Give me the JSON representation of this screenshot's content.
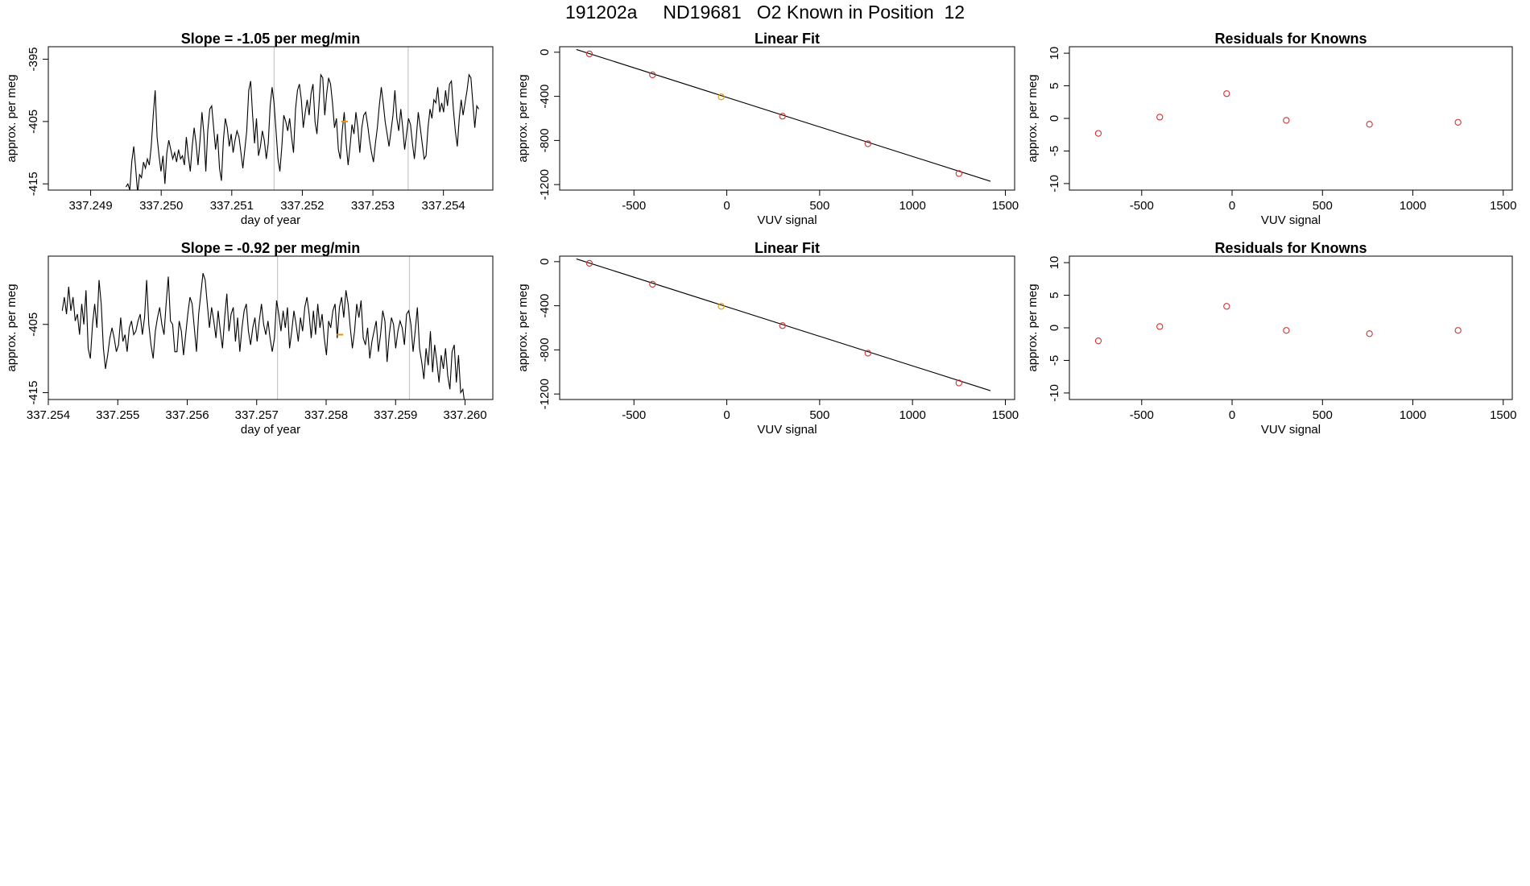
{
  "page": {
    "title": "191202a     ND19681   O2 Known in Position  12",
    "colors": {
      "line": "#000000",
      "knowns": "#cd3333",
      "highlight": "#e69500",
      "vline": "#c8c8c8"
    }
  },
  "chart_data": [
    {
      "id": "ts1",
      "type": "line",
      "title": "Slope =  -1.05  per meg/min",
      "xlabel": "day of year",
      "ylabel": "approx. per meg",
      "xlim": [
        337.2484,
        337.2547
      ],
      "ylim": [
        -416,
        -393
      ],
      "xticks": [
        "337.249",
        "337.250",
        "337.251",
        "337.252",
        "337.253",
        "337.254"
      ],
      "xtick_values": [
        337.249,
        337.25,
        337.251,
        337.252,
        337.253,
        337.254
      ],
      "yticks": [
        "-395",
        "-405",
        "-415"
      ],
      "ytick_values": [
        -395,
        -405,
        -415
      ],
      "x_start": 337.2495,
      "x_end": 337.2545,
      "values": [
        -415.5,
        -415.0,
        -416.0,
        -411.5,
        -409.0,
        -412.5,
        -416.5,
        -413.5,
        -414.0,
        -411.5,
        -412.5,
        -411.0,
        -412.0,
        -409.0,
        -404.0,
        -400.0,
        -407.5,
        -410.5,
        -413.0,
        -410.5,
        -415.0,
        -410.0,
        -408.0,
        -409.5,
        -411.0,
        -410.0,
        -411.5,
        -409.5,
        -411.0,
        -410.5,
        -412.0,
        -407.5,
        -410.5,
        -413.0,
        -409.0,
        -406.0,
        -408.5,
        -412.0,
        -408.0,
        -403.5,
        -407.0,
        -413.0,
        -406.5,
        -403.0,
        -402.5,
        -406.0,
        -409.5,
        -407.0,
        -412.5,
        -414.5,
        -408.0,
        -404.5,
        -406.0,
        -409.0,
        -407.0,
        -410.0,
        -408.0,
        -406.5,
        -407.5,
        -410.0,
        -412.5,
        -409.5,
        -406.5,
        -400.0,
        -398.5,
        -404.0,
        -408.5,
        -404.5,
        -410.5,
        -409.0,
        -406.5,
        -408.0,
        -411.0,
        -408.5,
        -402.5,
        -399.5,
        -402.0,
        -406.5,
        -411.0,
        -413.0,
        -409.0,
        -404.0,
        -405.0,
        -406.5,
        -404.5,
        -407.5,
        -410.0,
        -403.0,
        -400.0,
        -399.0,
        -401.5,
        -406.0,
        -403.5,
        -401.5,
        -404.0,
        -400.5,
        -399.0,
        -405.0,
        -407.0,
        -402.5,
        -397.5,
        -398.0,
        -404.0,
        -400.5,
        -398.0,
        -399.0,
        -402.0,
        -406.0,
        -404.5,
        -409.5,
        -411.0,
        -406.5,
        -403.5,
        -408.5,
        -412.0,
        -409.0,
        -405.5,
        -407.0,
        -403.5,
        -406.0,
        -410.0,
        -406.0,
        -404.0,
        -403.5,
        -405.5,
        -408.0,
        -410.0,
        -411.5,
        -408.5,
        -406.0,
        -402.5,
        -399.5,
        -402.0,
        -405.0,
        -407.0,
        -409.0,
        -406.5,
        -404.0,
        -400.0,
        -404.5,
        -406.5,
        -403.0,
        -406.0,
        -409.5,
        -407.0,
        -404.5,
        -405.5,
        -408.5,
        -411.0,
        -407.5,
        -403.5,
        -406.0,
        -408.5,
        -411.0,
        -410.5,
        -406.0,
        -403.0,
        -404.5,
        -401.5,
        -402.0,
        -399.5,
        -403.5,
        -402.0,
        -403.5,
        -400.0,
        -402.5,
        -399.0,
        -398.5,
        -403.0,
        -406.5,
        -409.0,
        -404.5,
        -401.5,
        -404.0,
        -402.0,
        -400.0,
        -397.5,
        -398.0,
        -402.0,
        -406.0,
        -402.5,
        -403.0
      ],
      "vlines": [
        337.2516,
        337.2535
      ],
      "marker": {
        "x": 337.2526,
        "y": -405.0
      }
    },
    {
      "id": "fit1",
      "type": "scatter",
      "title": "Linear Fit",
      "xlabel": "VUV signal",
      "ylabel": "approx. per meg",
      "xlim": [
        -900,
        1550
      ],
      "ylim": [
        -1250,
        50
      ],
      "xticks": [
        "-500",
        "0",
        "500",
        "1000",
        "1500"
      ],
      "xtick_values": [
        -500,
        0,
        500,
        1000,
        1500
      ],
      "yticks": [
        "0",
        "-400",
        "-800",
        "-1200"
      ],
      "ytick_values": [
        0,
        -400,
        -800,
        -1200
      ],
      "x": [
        -740,
        -400,
        -30,
        300,
        760,
        1250
      ],
      "y": [
        -15,
        -205,
        -405,
        -580,
        -830,
        -1100
      ],
      "highlight_index": 2,
      "fit_line": {
        "x": [
          -810,
          1420
        ],
        "y": [
          25,
          -1170
        ]
      }
    },
    {
      "id": "res1",
      "type": "scatter",
      "title": "Residuals for Knowns",
      "xlabel": "VUV signal",
      "ylabel": "approx. per meg",
      "xlim": [
        -900,
        1550
      ],
      "ylim": [
        -11,
        11
      ],
      "xticks": [
        "-500",
        "0",
        "500",
        "1000",
        "1500"
      ],
      "xtick_values": [
        -500,
        0,
        500,
        1000,
        1500
      ],
      "yticks": [
        "10",
        "5",
        "0",
        "-5",
        "-10"
      ],
      "ytick_values": [
        10,
        5,
        0,
        -5,
        -10
      ],
      "x": [
        -740,
        -400,
        -30,
        300,
        760,
        1250
      ],
      "y": [
        -2.3,
        0.2,
        3.8,
        -0.3,
        -0.9,
        -0.6
      ]
    },
    {
      "id": "ts2",
      "type": "line",
      "title": "Slope =  -0.92  per meg/min",
      "xlabel": "day of year",
      "ylabel": "approx. per meg",
      "xlim": [
        337.254,
        337.2604
      ],
      "ylim": [
        -416,
        -395
      ],
      "xticks": [
        "337.254",
        "337.255",
        "337.256",
        "337.257",
        "337.258",
        "337.259",
        "337.260"
      ],
      "xtick_values": [
        337.254,
        337.255,
        337.256,
        337.257,
        337.258,
        337.259,
        337.26
      ],
      "yticks": [
        "-405",
        "-415"
      ],
      "ytick_values": [
        -405,
        -415
      ],
      "x_start": 337.2542,
      "x_end": 337.26,
      "values": [
        -403.0,
        -401.0,
        -403.5,
        -399.5,
        -403.0,
        -401.0,
        -404.5,
        -403.5,
        -406.5,
        -402.0,
        -405.0,
        -400.0,
        -408.5,
        -410.0,
        -405.0,
        -402.0,
        -405.5,
        -398.5,
        -402.0,
        -408.5,
        -411.5,
        -409.5,
        -407.0,
        -405.5,
        -407.0,
        -409.0,
        -408.0,
        -404.0,
        -407.5,
        -406.5,
        -409.0,
        -405.5,
        -404.5,
        -406.5,
        -406.0,
        -404.5,
        -403.5,
        -406.5,
        -404.0,
        -398.5,
        -405.0,
        -408.0,
        -410.0,
        -406.0,
        -404.0,
        -402.5,
        -405.0,
        -406.5,
        -402.0,
        -398.0,
        -404.5,
        -405.0,
        -409.0,
        -409.0,
        -404.5,
        -406.0,
        -409.5,
        -406.5,
        -403.5,
        -401.0,
        -402.0,
        -405.5,
        -409.0,
        -403.5,
        -400.5,
        -397.5,
        -398.5,
        -402.0,
        -405.5,
        -402.5,
        -404.5,
        -407.0,
        -403.0,
        -406.0,
        -408.5,
        -404.0,
        -400.5,
        -406.0,
        -403.5,
        -402.5,
        -407.5,
        -404.0,
        -409.0,
        -405.5,
        -403.0,
        -402.0,
        -406.0,
        -408.0,
        -405.5,
        -404.0,
        -407.5,
        -404.5,
        -402.0,
        -405.0,
        -406.5,
        -404.5,
        -407.0,
        -409.0,
        -407.0,
        -401.5,
        -403.5,
        -406.0,
        -403.0,
        -405.5,
        -402.5,
        -408.5,
        -406.0,
        -403.0,
        -405.0,
        -407.5,
        -404.0,
        -406.0,
        -402.5,
        -401.0,
        -403.5,
        -407.0,
        -403.0,
        -406.5,
        -402.0,
        -405.5,
        -403.5,
        -407.0,
        -409.5,
        -404.5,
        -405.5,
        -403.0,
        -402.0,
        -407.0,
        -402.5,
        -401.0,
        -404.0,
        -400.0,
        -402.0,
        -405.5,
        -408.5,
        -406.0,
        -402.0,
        -404.0,
        -401.5,
        -407.0,
        -408.0,
        -405.5,
        -410.0,
        -407.5,
        -406.0,
        -404.5,
        -409.0,
        -406.5,
        -403.0,
        -404.5,
        -410.5,
        -406.5,
        -404.0,
        -405.0,
        -408.5,
        -406.0,
        -404.5,
        -405.5,
        -408.0,
        -403.5,
        -403.0,
        -405.0,
        -409.0,
        -406.0,
        -402.5,
        -408.5,
        -410.5,
        -413.0,
        -408.5,
        -411.0,
        -406.0,
        -412.0,
        -408.0,
        -410.5,
        -413.5,
        -409.5,
        -411.5,
        -408.5,
        -412.5,
        -414.5,
        -409.0,
        -408.0,
        -413.5,
        -409.5,
        -415.0,
        -414.5,
        -417.0
      ],
      "vlines": [
        337.2573,
        337.2592
      ],
      "marker": {
        "x": 337.2582,
        "y": -406.5
      }
    },
    {
      "id": "fit2",
      "type": "scatter",
      "title": "Linear Fit",
      "xlabel": "VUV signal",
      "ylabel": "approx. per meg",
      "xlim": [
        -900,
        1550
      ],
      "ylim": [
        -1250,
        50
      ],
      "xticks": [
        "-500",
        "0",
        "500",
        "1000",
        "1500"
      ],
      "xtick_values": [
        -500,
        0,
        500,
        1000,
        1500
      ],
      "yticks": [
        "0",
        "-400",
        "-800",
        "-1200"
      ],
      "ytick_values": [
        0,
        -400,
        -800,
        -1200
      ],
      "x": [
        -740,
        -400,
        -30,
        300,
        760,
        1250
      ],
      "y": [
        -15,
        -205,
        -405,
        -580,
        -830,
        -1100
      ],
      "highlight_index": 2,
      "fit_line": {
        "x": [
          -810,
          1420
        ],
        "y": [
          25,
          -1170
        ]
      }
    },
    {
      "id": "res2",
      "type": "scatter",
      "title": "Residuals for Knowns",
      "xlabel": "VUV signal",
      "ylabel": "approx. per meg",
      "xlim": [
        -900,
        1550
      ],
      "ylim": [
        -11,
        11
      ],
      "xticks": [
        "-500",
        "0",
        "500",
        "1000",
        "1500"
      ],
      "xtick_values": [
        -500,
        0,
        500,
        1000,
        1500
      ],
      "yticks": [
        "10",
        "5",
        "0",
        "-5",
        "-10"
      ],
      "ytick_values": [
        10,
        5,
        0,
        -5,
        -10
      ],
      "x": [
        -740,
        -400,
        -30,
        300,
        760,
        1250
      ],
      "y": [
        -2.0,
        0.2,
        3.3,
        -0.4,
        -0.9,
        -0.4
      ]
    }
  ]
}
